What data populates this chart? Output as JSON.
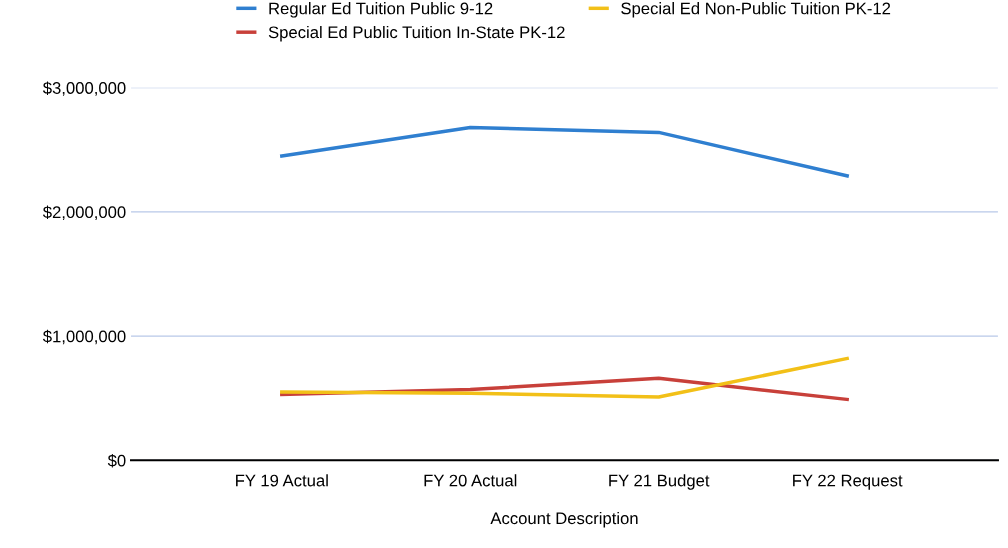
{
  "chart_data": {
    "type": "line",
    "xlabel": "Account Description",
    "categories": [
      "FY 19 Actual",
      "FY 20 Actual",
      "FY 21 Budget",
      "FY 22 Request"
    ],
    "series": [
      {
        "name": "Regular Ed Tuition Public 9-12",
        "color": "#2f7fd0",
        "values": [
          2450000,
          2680000,
          2640000,
          2290000
        ]
      },
      {
        "name": "Special Ed Public Tuition In-State PK-12",
        "color": "#c8403a",
        "values": [
          530000,
          570000,
          660000,
          490000
        ]
      },
      {
        "name": "Special Ed Non-Public Tuition PK-12",
        "color": "#f2c018",
        "values": [
          550000,
          540000,
          510000,
          820000
        ]
      }
    ],
    "ylim": [
      0,
      3000000
    ],
    "yticks": [
      {
        "value": 0,
        "label": "$0"
      },
      {
        "value": 1000000,
        "label": "$1,000,000"
      },
      {
        "value": 2000000,
        "label": "$2,000,000"
      },
      {
        "value": 3000000,
        "label": "$3,000,000"
      }
    ],
    "grid": "y",
    "legend": "top",
    "marker": "none",
    "line_style": "solid"
  }
}
